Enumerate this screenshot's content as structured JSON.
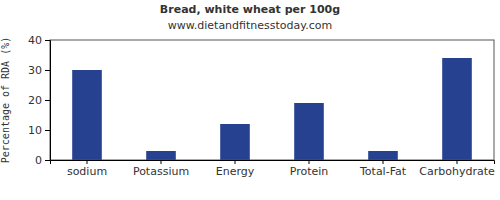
{
  "chart_data": {
    "type": "bar",
    "title": "Bread, white wheat per 100g",
    "subtitle": "www.dietandfitnesstoday.com",
    "y_label": "Percentage of RDA (%)",
    "categories": [
      "sodium",
      "Potassium",
      "Energy",
      "Protein",
      "Total-Fat",
      "Carbohydrate"
    ],
    "values": [
      30,
      3,
      12,
      19,
      3,
      34
    ],
    "color": "#26418f",
    "ylim": [
      0,
      40
    ],
    "yticks": [
      0,
      10,
      20,
      30,
      40
    ],
    "grid": false
  }
}
